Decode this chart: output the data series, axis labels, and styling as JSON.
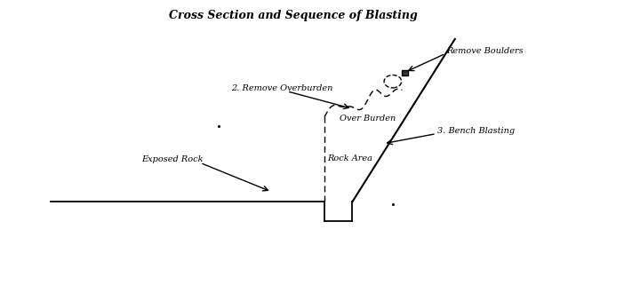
{
  "title": "Cross Section and Sequence of Blasting",
  "title_fontsize": 9,
  "title_color": "#000000",
  "bg_color": "#ffffff",
  "figsize": [
    7.02,
    3.3
  ],
  "dpi": 100,
  "labels": {
    "remove_overburden": "2. Remove Overburden",
    "remove_boulders": "Remove Boulders",
    "overburden": "Over Burden",
    "exposed_rock": "Exposed Rock",
    "bench_blasting": "3. Bench Blasting",
    "rock_area": "Rock Area"
  },
  "label_color": "#000000",
  "label_fontsize": 7,
  "line_color": "#000000",
  "xlim": [
    0,
    10
  ],
  "ylim": [
    0,
    5
  ]
}
